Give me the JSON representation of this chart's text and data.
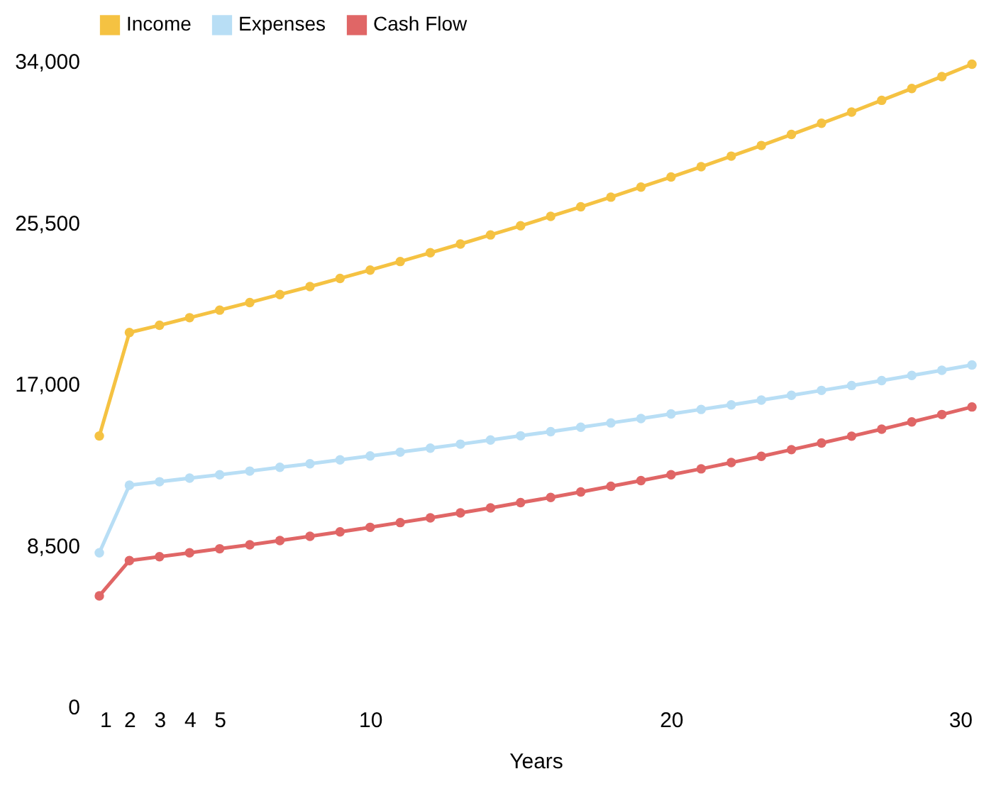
{
  "chart_data": {
    "type": "line",
    "xlabel": "Years",
    "x": [
      1,
      2,
      3,
      4,
      5,
      6,
      7,
      8,
      9,
      10,
      11,
      12,
      13,
      14,
      15,
      16,
      17,
      18,
      19,
      20,
      21,
      22,
      23,
      24,
      25,
      26,
      27,
      28,
      29,
      30
    ],
    "xlim": [
      1,
      30
    ],
    "xticks": [
      1,
      2,
      3,
      4,
      5,
      10,
      20,
      30
    ],
    "ylim": [
      0,
      34000
    ],
    "yticks": [
      0,
      {
        "value": 8500,
        "label": "8,500"
      },
      {
        "value": 17000,
        "label": "17,000"
      },
      {
        "value": 25500,
        "label": "25,500"
      },
      {
        "value": 34000,
        "label": "34,000"
      }
    ],
    "grid": false,
    "legend": "top",
    "marker": "circle",
    "line_style": "solid",
    "series": [
      {
        "name": "Income",
        "color": "#f5c242",
        "values": [
          14250,
          19700,
          20080,
          20480,
          20880,
          21280,
          21700,
          22120,
          22550,
          22990,
          23440,
          23900,
          24360,
          24840,
          25320,
          25820,
          26320,
          26830,
          27360,
          27890,
          28430,
          28990,
          29550,
          30130,
          30720,
          31310,
          31930,
          32550,
          33180,
          33830
        ]
      },
      {
        "name": "Expenses",
        "color": "#b8def5",
        "values": [
          8100,
          11660,
          11840,
          12030,
          12210,
          12400,
          12600,
          12790,
          12990,
          13200,
          13400,
          13610,
          13820,
          14040,
          14260,
          14480,
          14710,
          14940,
          15170,
          15410,
          15650,
          15890,
          16140,
          16390,
          16650,
          16910,
          17170,
          17440,
          17710,
          17990
        ]
      },
      {
        "name": "Cash Flow",
        "color": "#e06666",
        "values": [
          5830,
          7690,
          7890,
          8100,
          8310,
          8520,
          8740,
          8970,
          9200,
          9440,
          9690,
          9940,
          10200,
          10460,
          10740,
          11010,
          11300,
          11600,
          11900,
          12210,
          12520,
          12850,
          13180,
          13530,
          13880,
          14240,
          14610,
          14990,
          15380,
          15780
        ]
      }
    ]
  }
}
